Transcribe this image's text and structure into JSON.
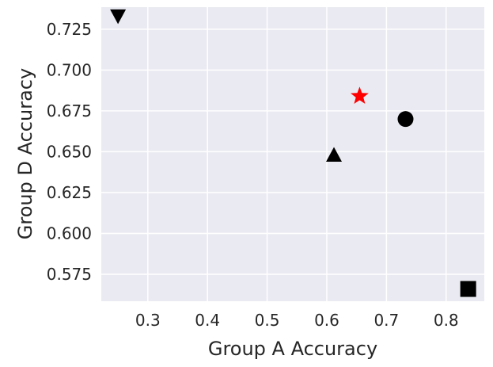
{
  "chart_data": {
    "type": "scatter",
    "xlabel": "Group A Accuracy",
    "ylabel": "Group D Accuracy",
    "xlim": [
      0.222,
      0.864
    ],
    "ylim": [
      0.5585,
      0.7385
    ],
    "x_ticks": [
      {
        "value": 0.3,
        "label": "0.3"
      },
      {
        "value": 0.4,
        "label": "0.4"
      },
      {
        "value": 0.5,
        "label": "0.5"
      },
      {
        "value": 0.6,
        "label": "0.6"
      },
      {
        "value": 0.7,
        "label": "0.7"
      },
      {
        "value": 0.8,
        "label": "0.8"
      }
    ],
    "y_ticks": [
      {
        "value": 0.575,
        "label": "0.575"
      },
      {
        "value": 0.6,
        "label": "0.600"
      },
      {
        "value": 0.625,
        "label": "0.625"
      },
      {
        "value": 0.65,
        "label": "0.650"
      },
      {
        "value": 0.675,
        "label": "0.675"
      },
      {
        "value": 0.7,
        "label": "0.700"
      },
      {
        "value": 0.725,
        "label": "0.725"
      }
    ],
    "grid": true,
    "background_color": "#eaeaf2",
    "grid_color": "#ffffff",
    "points": [
      {
        "x": 0.25,
        "y": 0.733,
        "marker": "triangle-down",
        "color": "#000000"
      },
      {
        "x": 0.655,
        "y": 0.684,
        "marker": "star",
        "color": "#ff0000"
      },
      {
        "x": 0.732,
        "y": 0.67,
        "marker": "circle",
        "color": "#000000"
      },
      {
        "x": 0.612,
        "y": 0.648,
        "marker": "triangle-up",
        "color": "#000000"
      },
      {
        "x": 0.837,
        "y": 0.566,
        "marker": "square",
        "color": "#000000"
      }
    ]
  }
}
